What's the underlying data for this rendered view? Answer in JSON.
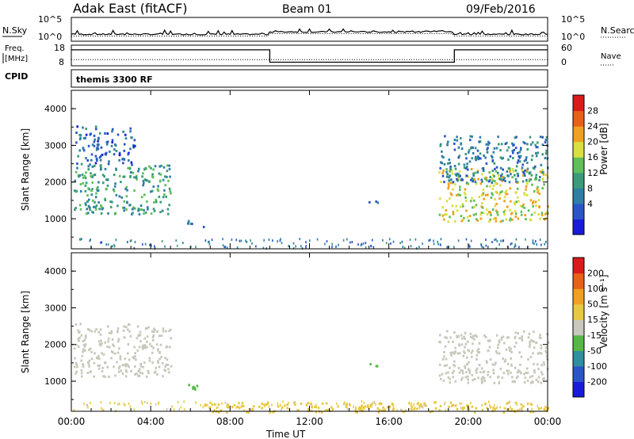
{
  "header": {
    "station": "Adak East (fitACF)",
    "beam": "Beam 01",
    "date": "09/Feb/2016"
  },
  "noise_panel": {
    "left_label": "N.Sky",
    "right_label": "N.Search",
    "left_ticks": [
      "10^5",
      "10^0"
    ],
    "right_ticks": [
      "10^5",
      "10^0"
    ]
  },
  "freq_panel": {
    "left_label_1": "Freq.",
    "left_label_2": "[MHz]",
    "right_label": "Nave",
    "left_ticks": [
      "18",
      "8"
    ],
    "right_ticks": [
      "60",
      "0"
    ],
    "cpid_label": "CPID",
    "cpid_text": "themis 3300 RF"
  },
  "power_panel": {
    "ylabel": "Slant Range [km]",
    "yticks": [
      "4000",
      "3000",
      "2000",
      "1000"
    ],
    "colorbar_label": "Power [dB]",
    "colorbar_ticks": [
      "28",
      "24",
      "20",
      "16",
      "12",
      "8",
      "4"
    ]
  },
  "velocity_panel": {
    "ylabel": "Slant Range [km]",
    "yticks": [
      "4000",
      "3000",
      "2000",
      "1000"
    ],
    "colorbar_label": "Velocity [m s⁻¹]",
    "colorbar_ticks": [
      "200",
      "100",
      "50",
      "15",
      "-15",
      "-50",
      "-100",
      "-200"
    ]
  },
  "x_axis": {
    "label": "Time UT",
    "ticks": [
      "00:00",
      "04:00",
      "08:00",
      "12:00",
      "16:00",
      "20:00",
      "00:00"
    ]
  },
  "chart_data": {
    "type": "heatmap",
    "x_unit": "hours UT",
    "x_range": [
      0,
      24
    ],
    "y_range": [
      0,
      4500
    ],
    "power_colors": [
      "#1a1adc",
      "#2a55c8",
      "#2e7fa5",
      "#3a9a7a",
      "#5fbf5a",
      "#d8e040",
      "#f0a020",
      "#e8601a",
      "#dc1a1a"
    ],
    "velocity_colors": [
      "#1a1adc",
      "#2a55c8",
      "#2e8fa0",
      "#55b845",
      "#c8c8bc",
      "#e8c840",
      "#f0a020",
      "#e8601a",
      "#dc1a1a"
    ],
    "power_features": [
      {
        "t_start": 0.1,
        "t_end": 5.0,
        "r_low": 1150,
        "r_high": 2500,
        "level": 12
      },
      {
        "t_start": 0.2,
        "t_end": 3.2,
        "r_low": 2500,
        "r_high": 3550,
        "level": 6
      },
      {
        "t_start": 5.8,
        "t_end": 6.7,
        "r_low": 800,
        "r_high": 1000,
        "level": 6
      },
      {
        "t_start": 14.7,
        "t_end": 15.5,
        "r_low": 1420,
        "r_high": 1520,
        "level": 6
      },
      {
        "t_start": 18.5,
        "t_end": 24.0,
        "r_low": 950,
        "r_high": 2400,
        "level": 20
      },
      {
        "t_start": 18.5,
        "t_end": 24.0,
        "r_low": 2000,
        "r_high": 3300,
        "level": 8
      }
    ],
    "velocity_features": [
      {
        "t_start": 0.1,
        "t_end": 5.0,
        "r_low": 1150,
        "r_high": 2600,
        "level": 0
      },
      {
        "t_start": 18.5,
        "t_end": 24.0,
        "r_low": 950,
        "r_high": 2400,
        "level": 0
      },
      {
        "t_start": 5.8,
        "t_end": 6.7,
        "r_low": 800,
        "r_high": 1000,
        "level": 30
      },
      {
        "t_start": 14.7,
        "t_end": 15.5,
        "r_low": 1420,
        "r_high": 1520,
        "level": 30
      },
      {
        "t_start": 6.5,
        "t_end": 24.0,
        "r_low": 150,
        "r_high": 450,
        "level": -40
      }
    ],
    "noise": {
      "n_sky_level": "low",
      "n_search_level": "low"
    },
    "frequency": [
      {
        "t_start": 0,
        "t_end": 10,
        "freq_mhz": 16.5
      },
      {
        "t_start": 10,
        "t_end": 19.3,
        "freq_mhz": 10.5
      },
      {
        "t_start": 19.3,
        "t_end": 24,
        "freq_mhz": 16.5
      }
    ],
    "nave": [
      {
        "t_start": 0,
        "t_end": 24,
        "value": 18
      }
    ]
  }
}
